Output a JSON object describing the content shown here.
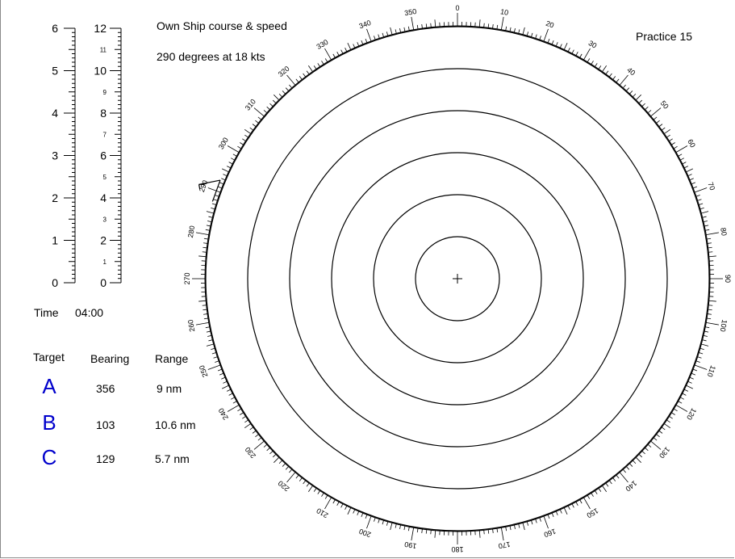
{
  "title_line1": "Own Ship course & speed",
  "title_line2": "290 degrees at 18 kts",
  "practice_label": "Practice  15",
  "time_label": "Time",
  "time_value": "04:00",
  "table": {
    "headers": {
      "target": "Target",
      "bearing": "Bearing",
      "range": "Range"
    },
    "rows": [
      {
        "target": "A",
        "bearing": "356",
        "range": "9 nm"
      },
      {
        "target": "B",
        "bearing": "103",
        "range": "10.6 nm"
      },
      {
        "target": "C",
        "bearing": "129",
        "range": "5.7 nm"
      }
    ]
  },
  "scale_left": {
    "min": 0,
    "max": 6,
    "major_labels": [
      "0",
      "1",
      "2",
      "3",
      "4",
      "5",
      "6"
    ]
  },
  "scale_right": {
    "min": 0,
    "max": 12,
    "major_labels": [
      "0",
      "2",
      "4",
      "6",
      "8",
      "10",
      "12"
    ],
    "minor_labels": [
      "1",
      "3",
      "5",
      "7",
      "9",
      "11"
    ]
  },
  "plot": {
    "range_rings": 6,
    "bearing_labels_every_deg": 10,
    "own_ship_course_deg": 290,
    "line_color": "#000000",
    "letter_color": "#0000cc"
  }
}
